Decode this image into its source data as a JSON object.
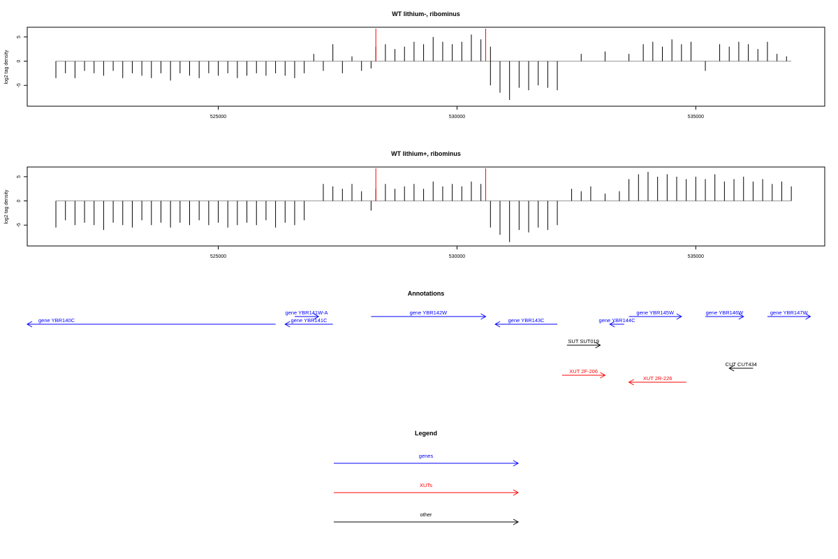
{
  "chart_data": [
    {
      "type": "bar",
      "title": "WT lithium-, ribominus",
      "ylabel": "log2 tag density",
      "xlim": [
        521000,
        537700
      ],
      "ylim": [
        -9.3,
        7
      ],
      "xticks": [
        525000,
        530000,
        535000
      ],
      "xtick_labels": [
        "525000",
        "530000",
        "535000"
      ],
      "yticks": [
        -5,
        0,
        5
      ],
      "ytick_labels": [
        "-5",
        "0",
        "5"
      ],
      "bar_color": "#000000",
      "baseline": {
        "x": [
          521600,
          537000
        ],
        "y": 0
      },
      "series": [
        {
          "x": [
            521600,
            521800,
            522000,
            522200,
            522400,
            522600,
            522800,
            523000,
            523200,
            523400,
            523600,
            523800,
            524000,
            524200,
            524400,
            524600,
            524800,
            525000,
            525200,
            525400,
            525600,
            525800,
            526000,
            526200,
            526400,
            526600,
            526800,
            527000,
            527200,
            527400,
            527600,
            527800,
            528000,
            528200
          ],
          "values": [
            -3.5,
            -2.5,
            -3.5,
            -2.0,
            -2.5,
            -3.0,
            -2.0,
            -3.5,
            -2.5,
            -3.0,
            -3.5,
            -2.5,
            -4.0,
            -2.5,
            -3.0,
            -3.5,
            -2.5,
            -3.0,
            -2.5,
            -3.5,
            -3.0,
            -2.5,
            -3.0,
            -2.5,
            -3.0,
            -3.5,
            -2.5,
            1.5,
            -2.0,
            3.5,
            -2.5,
            1.0,
            -2.0,
            -1.5
          ]
        },
        {
          "x": [
            528300,
            528500,
            528700,
            528900,
            529100,
            529300,
            529500,
            529700,
            529900,
            530100,
            530300,
            530500,
            530700
          ],
          "values": [
            3.0,
            3.5,
            2.5,
            3.0,
            4.0,
            3.5,
            5.0,
            4.0,
            3.5,
            4.0,
            5.5,
            4.5,
            3.0
          ]
        },
        {
          "x": [
            530700,
            530900,
            531100,
            531300,
            531500,
            531700,
            531900,
            532100
          ],
          "values": [
            -5.0,
            -6.5,
            -8.0,
            -5.5,
            -6.0,
            -5.0,
            -5.5,
            -6.0
          ]
        },
        {
          "x": [
            532600,
            533100,
            533600,
            533900,
            534100,
            534300,
            534500,
            534700,
            534900,
            535200,
            535500,
            535700,
            535900,
            536100,
            536300,
            536500,
            536700,
            536900
          ],
          "values": [
            1.5,
            2.0,
            1.5,
            3.5,
            4.0,
            3.0,
            4.5,
            3.5,
            4.0,
            -2.0,
            3.5,
            3.0,
            4.0,
            3.5,
            2.5,
            4.0,
            1.5,
            1.0
          ]
        }
      ],
      "markers": [
        {
          "x": 528300,
          "color": "#ff0000"
        },
        {
          "x": 530600,
          "color": "#ff0000"
        }
      ]
    },
    {
      "type": "bar",
      "title": "WT lithium+, ribominus",
      "ylabel": "log2 tag density",
      "xlim": [
        521000,
        537700
      ],
      "ylim": [
        -9.3,
        7
      ],
      "xticks": [
        525000,
        530000,
        535000
      ],
      "xtick_labels": [
        "525000",
        "530000",
        "535000"
      ],
      "yticks": [
        -5,
        0,
        5
      ],
      "ytick_labels": [
        "-5",
        "0",
        "5"
      ],
      "bar_color": "#000000",
      "baseline": {
        "x": [
          521600,
          537000
        ],
        "y": 0
      },
      "series": [
        {
          "x": [
            521600,
            521800,
            522000,
            522200,
            522400,
            522600,
            522800,
            523000,
            523200,
            523400,
            523600,
            523800,
            524000,
            524200,
            524400,
            524600,
            524800,
            525000,
            525200,
            525400,
            525600,
            525800,
            526000,
            526200,
            526400,
            526600,
            526800
          ],
          "values": [
            -5.5,
            -4.0,
            -5.0,
            -4.5,
            -5.0,
            -6.0,
            -4.5,
            -5.0,
            -5.5,
            -4.0,
            -5.0,
            -4.5,
            -5.5,
            -4.5,
            -5.0,
            -4.0,
            -5.0,
            -4.5,
            -5.5,
            -5.0,
            -4.5,
            -5.0,
            -4.0,
            -5.5,
            -4.5,
            -5.0,
            -4.0
          ]
        },
        {
          "x": [
            527200,
            527400,
            527600,
            527800,
            528000,
            528200
          ],
          "values": [
            3.5,
            3.0,
            2.5,
            3.5,
            2.0,
            -2.0
          ]
        },
        {
          "x": [
            528300,
            528500,
            528700,
            528900,
            529100,
            529300,
            529500,
            529700,
            529900,
            530100,
            530300,
            530500
          ],
          "values": [
            2.5,
            3.5,
            2.5,
            3.0,
            3.5,
            2.5,
            4.0,
            3.0,
            3.5,
            3.0,
            4.0,
            3.5
          ]
        },
        {
          "x": [
            530700,
            530900,
            531100,
            531300,
            531500,
            531700,
            531900,
            532100
          ],
          "values": [
            -5.5,
            -7.0,
            -8.5,
            -6.0,
            -6.5,
            -5.5,
            -6.0,
            -5.0
          ]
        },
        {
          "x": [
            532400,
            532600,
            532800,
            533100,
            533400,
            533600,
            533800,
            534000,
            534200,
            534400,
            534600,
            534800,
            535000,
            535200,
            535400,
            535600,
            535800,
            536000,
            536200,
            536400,
            536600,
            536800,
            537000
          ],
          "values": [
            2.5,
            2.0,
            3.0,
            1.5,
            2.0,
            4.5,
            5.5,
            6.0,
            5.0,
            5.5,
            5.0,
            4.5,
            5.0,
            4.5,
            5.5,
            4.0,
            4.5,
            5.0,
            4.0,
            4.5,
            3.5,
            4.0,
            3.0
          ]
        }
      ],
      "markers": [
        {
          "x": 528300,
          "color": "#ff0000"
        },
        {
          "x": 530600,
          "color": "#ff0000"
        }
      ]
    }
  ],
  "annotations": {
    "title": "Annotations",
    "features": [
      {
        "label": "gene YBR140C",
        "start": 521000,
        "end": 526200,
        "strand": "-",
        "color": "#0000ff",
        "track": 1,
        "label_at": "start"
      },
      {
        "label": "gene YBR141W-A",
        "start": 526600,
        "end": 527100,
        "strand": "+",
        "color": "#0000ff",
        "track": 0,
        "label_at": "center"
      },
      {
        "label": "gene YBR141C",
        "start": 526400,
        "end": 527400,
        "strand": "-",
        "color": "#0000ff",
        "track": 1,
        "label_at": "center"
      },
      {
        "label": "gene YBR142W",
        "start": 528200,
        "end": 530600,
        "strand": "+",
        "color": "#0000ff",
        "track": 0,
        "label_at": "center"
      },
      {
        "label": "gene YBR143C",
        "start": 530800,
        "end": 532100,
        "strand": "-",
        "color": "#0000ff",
        "track": 1,
        "label_at": "center"
      },
      {
        "label": "gene YBR144C",
        "start": 533200,
        "end": 533500,
        "strand": "-",
        "color": "#0000ff",
        "track": 1,
        "label_at": "center"
      },
      {
        "label": "gene YBR145W",
        "start": 533600,
        "end": 534700,
        "strand": "+",
        "color": "#0000ff",
        "track": 0,
        "label_at": "center"
      },
      {
        "label": "gene YBR146W",
        "start": 535200,
        "end": 536000,
        "strand": "+",
        "color": "#0000ff",
        "track": 0,
        "label_at": "center"
      },
      {
        "label": "gene YBR147W",
        "start": 536500,
        "end": 537400,
        "strand": "+",
        "color": "#0000ff",
        "track": 0,
        "label_at": "center"
      },
      {
        "label": "SUT SUT019",
        "start": 532300,
        "end": 533000,
        "strand": "+",
        "color": "#000000",
        "track": 2,
        "label_at": "center"
      },
      {
        "label": "CUT CUT434",
        "start": 535700,
        "end": 536200,
        "strand": "-",
        "color": "#000000",
        "track": 3,
        "label_at": "center"
      },
      {
        "label": "XUT 2F-206",
        "start": 532200,
        "end": 533100,
        "strand": "+",
        "color": "#ff0000",
        "track": 4,
        "label_at": "center"
      },
      {
        "label": "XUT 2R-226",
        "start": 533600,
        "end": 534800,
        "strand": "-",
        "color": "#ff0000",
        "track": 5,
        "label_at": "center"
      }
    ]
  },
  "legend": {
    "title": "Legend",
    "items": [
      {
        "label": "genes",
        "color": "#0000ff"
      },
      {
        "label": "XUTs",
        "color": "#ff0000"
      },
      {
        "label": "other",
        "color": "#000000"
      }
    ]
  }
}
